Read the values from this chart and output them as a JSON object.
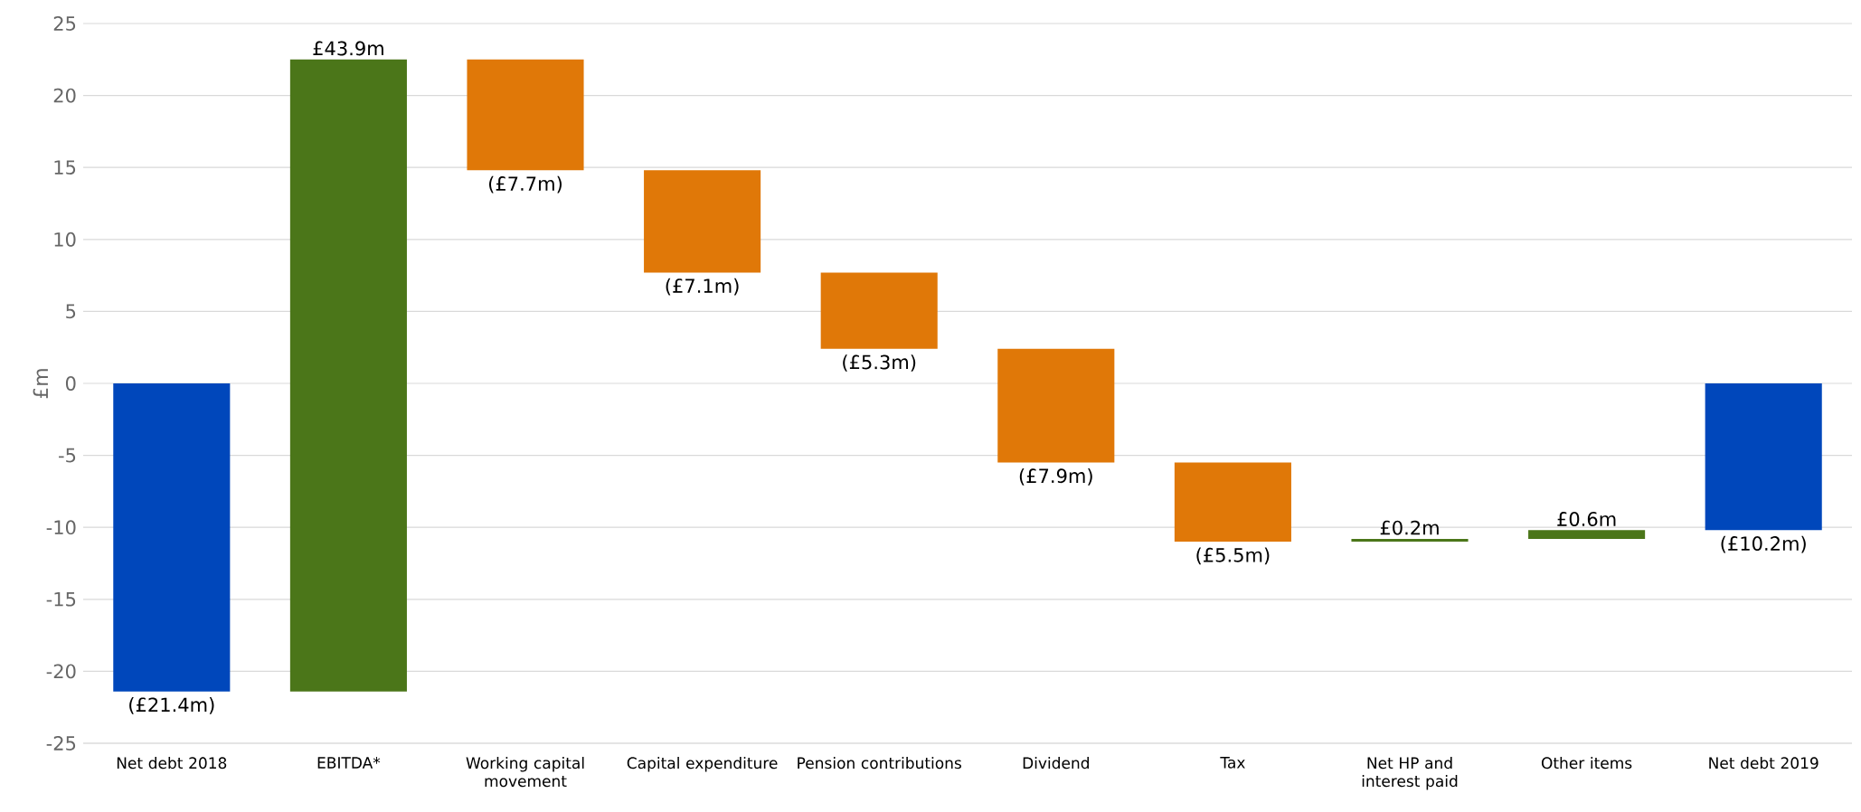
{
  "chart_data": {
    "type": "bar",
    "ylabel": "£m",
    "categories": [
      "Net debt 2018",
      "EBITDA*",
      "Working capital movement",
      "Capital expenditure",
      "Pension contributions",
      "Dividend",
      "Tax",
      "Net HP and interest paid",
      "Other items",
      "Net debt 2019"
    ],
    "values": [
      -21.4,
      43.9,
      -7.7,
      -7.1,
      -5.3,
      -7.9,
      -5.5,
      0.2,
      0.6,
      -10.2
    ],
    "base": [
      0,
      -21.4,
      22.5,
      14.8,
      7.7,
      2.4,
      -5.5,
      -11.0,
      -10.8,
      0
    ],
    "colors": [
      "#0047bb",
      "#4b7619",
      "#e07808",
      "#e07808",
      "#e07808",
      "#e07808",
      "#e07808",
      "#4b7619",
      "#4b7619",
      "#0047bb"
    ],
    "value_labels": [
      "(£21.4m)",
      "£43.9m",
      "(£7.7m)",
      "(£7.1m)",
      "(£5.3m)",
      "(£7.9m)",
      "(£5.5m)",
      "£0.2m",
      "£0.6m",
      "(£10.2m)"
    ],
    "ylim": [
      -25,
      25
    ],
    "yticks": [
      -25,
      -20,
      -15,
      -10,
      -5,
      0,
      5,
      10,
      15,
      20,
      25
    ],
    "grid": "y"
  }
}
